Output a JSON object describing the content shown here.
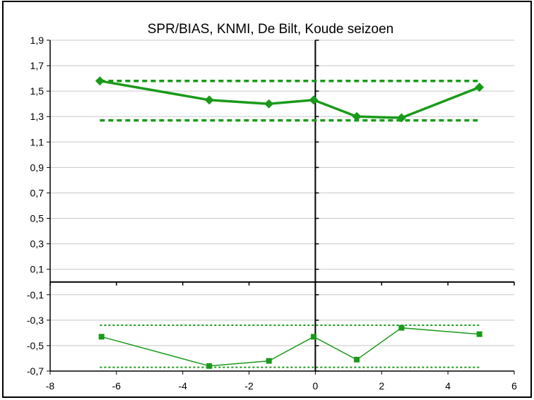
{
  "chart_data": {
    "type": "line",
    "title": "SPR/BIAS, KNMI, De Bilt, Koude seizoen",
    "xlabel": "",
    "ylabel": "",
    "xlim": [
      -8,
      6
    ],
    "ylim": [
      -0.7,
      1.9
    ],
    "x_ticks": [
      -8,
      -6,
      -4,
      -2,
      0,
      2,
      4,
      6
    ],
    "x_tick_labels": [
      "-8",
      "-6",
      "-4",
      "-2",
      "0",
      "2",
      "4",
      "6"
    ],
    "y_ticks": [
      1.9,
      1.7,
      1.5,
      1.3,
      1.1,
      0.9,
      0.7,
      0.5,
      0.3,
      0.1,
      -0.1,
      -0.3,
      -0.5,
      -0.7
    ],
    "y_tick_labels": [
      "1,9",
      "1,7",
      "1,5",
      "1,3",
      "1,1",
      "0,9",
      "0,7",
      "0,5",
      "0,3",
      "0,1",
      "-0,1",
      "-0,3",
      "-0,5",
      "-0,7"
    ],
    "grid": "horizontal",
    "legend": "none",
    "color": "#1a9a1a",
    "series": [
      {
        "marker": "diamond",
        "style": "solid-thick",
        "points": [
          [
            -6.5,
            1.58
          ],
          [
            -3.2,
            1.43
          ],
          [
            -1.4,
            1.4
          ],
          [
            -0.05,
            1.43
          ],
          [
            1.25,
            1.3
          ],
          [
            2.6,
            1.29
          ],
          [
            4.95,
            1.53
          ]
        ]
      },
      {
        "marker": "square",
        "style": "solid-thin",
        "points": [
          [
            -6.45,
            -0.43
          ],
          [
            -3.2,
            -0.66
          ],
          [
            -1.4,
            -0.62
          ],
          [
            -0.05,
            -0.43
          ],
          [
            1.25,
            -0.61
          ],
          [
            2.6,
            -0.36
          ],
          [
            4.95,
            -0.41
          ]
        ]
      }
    ],
    "reference_lines": [
      {
        "y": 1.58,
        "x_range": [
          -6.5,
          4.95
        ],
        "style": "dashed-thick"
      },
      {
        "y": 1.27,
        "x_range": [
          -6.5,
          4.95
        ],
        "style": "dashed-thick"
      },
      {
        "y": -0.34,
        "x_range": [
          -6.5,
          4.95
        ],
        "style": "dotted-thin"
      },
      {
        "y": -0.67,
        "x_range": [
          -6.5,
          4.95
        ],
        "style": "dotted-thin"
      }
    ]
  }
}
